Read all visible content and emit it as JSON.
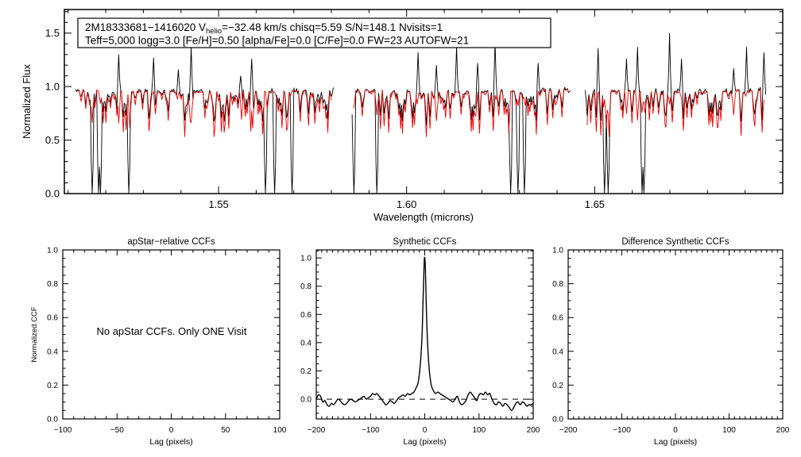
{
  "figure": {
    "background": "#ffffff",
    "accent_red": "#e60000"
  },
  "chart_data": [
    {
      "id": "spectrum",
      "type": "line",
      "xlabel": "Wavelength (microns)",
      "ylabel": "Normalized Flux",
      "xlim": [
        1.509,
        1.7
      ],
      "ylim": [
        0,
        1.72
      ],
      "xticks": [
        1.55,
        1.6,
        1.65
      ],
      "xtick_labels": [
        "1.55",
        "1.60",
        "1.65"
      ],
      "yticks": [
        0,
        0.5,
        1,
        1.5
      ],
      "ytick_labels": [
        "0.0",
        "0.5",
        "1.0",
        "1.5"
      ],
      "x_minor_step": 0.01,
      "y_minor_step": 0.1,
      "series": [
        {
          "name": "observed spectrum",
          "color": "#000000"
        },
        {
          "name": "best-fit synthetic spectrum",
          "color": "#e60000"
        }
      ],
      "segments": [
        [
          1.512,
          1.5805
        ],
        [
          1.5855,
          1.6435
        ],
        [
          1.6475,
          1.6955
        ]
      ],
      "continuum_level": 0.97,
      "deep_absorption_wavelengths": [
        1.5165,
        1.518,
        1.5187,
        1.5262,
        1.5624,
        1.565,
        1.5696,
        1.586,
        1.592,
        1.6276,
        1.6296,
        1.6312,
        1.6527,
        1.6537,
        1.6625,
        1.6632
      ],
      "emission_spikes": [
        [
          1.5235,
          1.3
        ],
        [
          1.5327,
          1.27
        ],
        [
          1.5392,
          1.16
        ],
        [
          1.5428,
          1.37
        ],
        [
          1.556,
          1.1
        ],
        [
          1.5589,
          1.26
        ],
        [
          1.603,
          1.32
        ],
        [
          1.608,
          1.2
        ],
        [
          1.6133,
          1.38
        ],
        [
          1.619,
          1.22
        ],
        [
          1.6236,
          1.42
        ],
        [
          1.635,
          1.22
        ],
        [
          1.6508,
          1.36
        ],
        [
          1.6585,
          1.26
        ],
        [
          1.6614,
          1.37
        ],
        [
          1.67,
          1.5
        ],
        [
          1.673,
          1.26
        ],
        [
          1.687,
          1.17
        ],
        [
          1.6905,
          1.37
        ],
        [
          1.695,
          1.32
        ]
      ],
      "noise_seed": 11,
      "annotation": {
        "line1_pre": "2M18333681−1416020  V",
        "line1_sub": "helio",
        "line1_post": "=−32.48 km/s  chisq=5.59  S/N=148.1  Nvisits=1",
        "line2": "Teff=5,000 logg=3.0 [Fe/H]=0.50 [alpha/Fe]=0.0 [C/Fe]=0.0 FW=23 AUTOFW=21"
      }
    },
    {
      "id": "apstar_ccf",
      "type": "line",
      "title": "apStar−relative CCFs",
      "xlabel": "Lag (pixels)",
      "ylabel": "Normalized CCF",
      "xlim": [
        -100,
        100
      ],
      "ylim": [
        0,
        1
      ],
      "xticks": [
        -100,
        -50,
        0,
        50,
        100
      ],
      "xtick_labels": [
        "−100",
        "−50",
        "0",
        "50",
        "100"
      ],
      "yticks": [
        0,
        0.2,
        0.4,
        0.6,
        0.8,
        1
      ],
      "ytick_labels": [
        "0.0",
        "0.2",
        "0.4",
        "0.6",
        "0.8",
        "1.0"
      ],
      "x_minor_step": 10,
      "y_minor_step": 0.05,
      "message": "No apStar CCFs.  Only ONE Visit",
      "series": []
    },
    {
      "id": "synthetic_ccf",
      "type": "line",
      "title": "Synthetic CCFs",
      "xlabel": "Lag (pixels)",
      "xlim": [
        -200,
        200
      ],
      "ylim": [
        -0.14,
        1.057
      ],
      "xticks": [
        -200,
        -100,
        0,
        100,
        200
      ],
      "xtick_labels": [
        "−200",
        "−100",
        "0",
        "100",
        "200"
      ],
      "yticks": [
        0,
        0.2,
        0.4,
        0.6,
        0.8,
        1
      ],
      "ytick_labels": [
        "0.0",
        "0.2",
        "0.4",
        "0.6",
        "0.8",
        "1.0"
      ],
      "x_minor_step": 10,
      "y_minor_step": 0.05,
      "zero_line": {
        "style": "dashed",
        "y": 0
      },
      "series": [
        {
          "name": "synthetic CCF",
          "color": "#000000",
          "points": [
            [
              -200,
              0.0
            ],
            [
              -196,
              0.03
            ],
            [
              -192,
              0.02
            ],
            [
              -188,
              -0.02
            ],
            [
              -184,
              -0.01
            ],
            [
              -180,
              -0.04
            ],
            [
              -176,
              -0.05
            ],
            [
              -172,
              -0.03
            ],
            [
              -168,
              -0.04
            ],
            [
              -164,
              -0.02
            ],
            [
              -160,
              0.0
            ],
            [
              -156,
              -0.01
            ],
            [
              -152,
              -0.03
            ],
            [
              -148,
              -0.04
            ],
            [
              -144,
              -0.03
            ],
            [
              -140,
              -0.01
            ],
            [
              -136,
              0.0
            ],
            [
              -132,
              -0.01
            ],
            [
              -128,
              -0.02
            ],
            [
              -124,
              -0.01
            ],
            [
              -120,
              0.0
            ],
            [
              -116,
              0.01
            ],
            [
              -112,
              0.02
            ],
            [
              -108,
              0.0
            ],
            [
              -104,
              0.01
            ],
            [
              -100,
              0.02
            ],
            [
              -96,
              0.04
            ],
            [
              -92,
              0.03
            ],
            [
              -88,
              0.04
            ],
            [
              -84,
              0.02
            ],
            [
              -80,
              0.0
            ],
            [
              -76,
              -0.02
            ],
            [
              -72,
              -0.04
            ],
            [
              -68,
              -0.03
            ],
            [
              -64,
              -0.01
            ],
            [
              -60,
              -0.02
            ],
            [
              -56,
              -0.03
            ],
            [
              -52,
              -0.01
            ],
            [
              -48,
              0.01
            ],
            [
              -44,
              0.02
            ],
            [
              -40,
              0.03
            ],
            [
              -36,
              0.02
            ],
            [
              -32,
              0.04
            ],
            [
              -28,
              0.03
            ],
            [
              -24,
              0.04
            ],
            [
              -20,
              0.05
            ],
            [
              -16,
              0.08
            ],
            [
              -12,
              0.12
            ],
            [
              -8,
              0.25
            ],
            [
              -5,
              0.45
            ],
            [
              -3,
              0.72
            ],
            [
              -1,
              0.97
            ],
            [
              0,
              1.0
            ],
            [
              1,
              0.95
            ],
            [
              3,
              0.65
            ],
            [
              5,
              0.42
            ],
            [
              8,
              0.22
            ],
            [
              12,
              0.1
            ],
            [
              16,
              0.06
            ],
            [
              20,
              0.04
            ],
            [
              24,
              0.05
            ],
            [
              28,
              0.04
            ],
            [
              32,
              0.03
            ],
            [
              36,
              0.02
            ],
            [
              40,
              0.01
            ],
            [
              44,
              0.0
            ],
            [
              48,
              -0.01
            ],
            [
              52,
              -0.02
            ],
            [
              56,
              0.0
            ],
            [
              60,
              0.02
            ],
            [
              64,
              -0.02
            ],
            [
              68,
              -0.04
            ],
            [
              72,
              -0.03
            ],
            [
              76,
              -0.01
            ],
            [
              80,
              0.03
            ],
            [
              84,
              0.05
            ],
            [
              88,
              0.03
            ],
            [
              92,
              0.01
            ],
            [
              96,
              -0.01
            ],
            [
              100,
              0.03
            ],
            [
              104,
              0.04
            ],
            [
              108,
              0.03
            ],
            [
              112,
              0.05
            ],
            [
              116,
              0.03
            ],
            [
              120,
              0.04
            ],
            [
              124,
              0.0
            ],
            [
              128,
              -0.03
            ],
            [
              132,
              -0.04
            ],
            [
              136,
              -0.02
            ],
            [
              140,
              -0.03
            ],
            [
              144,
              -0.05
            ],
            [
              148,
              -0.03
            ],
            [
              152,
              -0.04
            ],
            [
              156,
              -0.06
            ],
            [
              160,
              -0.08
            ],
            [
              164,
              -0.06
            ],
            [
              168,
              -0.03
            ],
            [
              172,
              -0.02
            ],
            [
              176,
              -0.04
            ],
            [
              180,
              -0.02
            ],
            [
              184,
              -0.03
            ],
            [
              188,
              -0.05
            ],
            [
              192,
              -0.04
            ],
            [
              196,
              -0.04
            ],
            [
              200,
              -0.03
            ]
          ]
        }
      ]
    },
    {
      "id": "difference_ccf",
      "type": "line",
      "title": "Difference Synthetic CCFs",
      "xlabel": "Lag (pixels)",
      "xlim": [
        -200,
        200
      ],
      "ylim": [
        0,
        1
      ],
      "xticks": [
        -200,
        -100,
        0,
        100,
        200
      ],
      "xtick_labels": [
        "−200",
        "−100",
        "0",
        "100",
        "200"
      ],
      "yticks": [
        0,
        0.2,
        0.4,
        0.6,
        0.8,
        1
      ],
      "ytick_labels": [
        "0.0",
        "0.2",
        "0.4",
        "0.6",
        "0.8",
        "1.0"
      ],
      "x_minor_step": 10,
      "y_minor_step": 0.05,
      "series": []
    }
  ]
}
